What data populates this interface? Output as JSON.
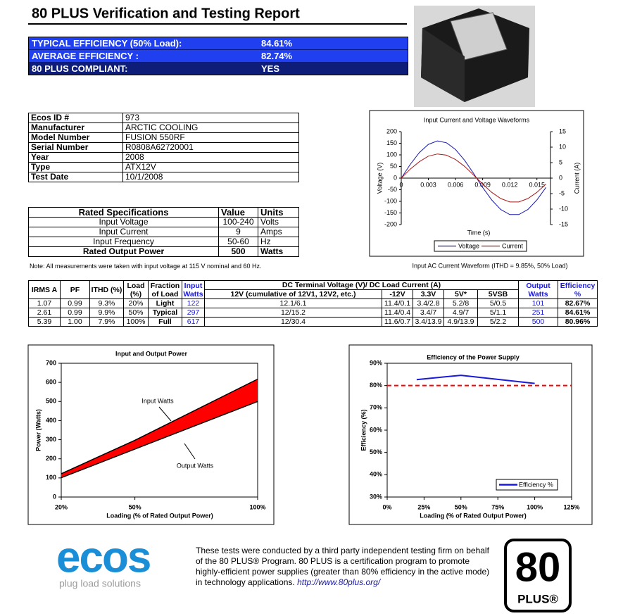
{
  "header": {
    "title": "80 PLUS Verification and Testing Report"
  },
  "summary": [
    {
      "label": "TYPICAL EFFICIENCY (50% Load):",
      "value": "84.61%"
    },
    {
      "label": "AVERAGE EFFICIENCY :",
      "value": "82.74%"
    },
    {
      "label": "80 PLUS COMPLIANT:",
      "value": "YES"
    }
  ],
  "info": [
    [
      "Ecos ID #",
      "973"
    ],
    [
      "Manufacturer",
      "ARCTIC COOLING"
    ],
    [
      "Model Number",
      "FUSION 550RF"
    ],
    [
      "Serial Number",
      "R0808A62720001"
    ],
    [
      "Year",
      "2008"
    ],
    [
      "Type",
      "ATX12V"
    ],
    [
      "Test Date",
      "10/1/2008"
    ]
  ],
  "rated": {
    "header": [
      "Rated Specifications",
      "Value",
      "Units"
    ],
    "rows": [
      [
        "Input Voltage",
        "100-240",
        "Volts"
      ],
      [
        "Input Current",
        "9",
        "Amps"
      ],
      [
        "Input Frequency",
        "50-60",
        "Hz"
      ],
      [
        "Rated Output Power",
        "500",
        "Watts"
      ]
    ]
  },
  "note": "Note: All measurements were taken with input voltage at 115 V nominal and 60 Hz.",
  "test_table": {
    "header_top": [
      "IRMS A",
      "PF",
      "ITHD (%)",
      "Load (%)",
      "Fraction of Load",
      "Input Watts",
      "DC Terminal Voltage (V)/ DC Load Current (A)",
      "Output Watts",
      "Efficiency %"
    ],
    "header_sub": [
      "12V (cumulative of 12V1, 12V2, etc.)",
      "-12V",
      "3.3V",
      "5V*",
      "5VSB"
    ],
    "rows": [
      [
        "1.07",
        "0.99",
        "9.3%",
        "20%",
        "Light",
        "122",
        "12.1/6.1",
        "11.4/0.1",
        "3.4/2.8",
        "5.2/8",
        "5/0.5",
        "101",
        "82.67%"
      ],
      [
        "2.61",
        "0.99",
        "9.9%",
        "50%",
        "Typical",
        "297",
        "12/15.2",
        "11.4/0.4",
        "3.4/7",
        "4.9/7",
        "5/1.1",
        "251",
        "84.61%"
      ],
      [
        "5.39",
        "1.00",
        "7.9%",
        "100%",
        "Full",
        "617",
        "12/30.4",
        "11.6/0.7",
        "3.4/13.9",
        "4.9/13.9",
        "5/2.2",
        "500",
        "80.96%"
      ]
    ]
  },
  "chart_data": [
    {
      "type": "line",
      "title": "Input Current and Voltage Waveforms",
      "x_label": "Time (s)",
      "y_label": "Voltage (V)",
      "y2_label": "Current (A)",
      "caption": "Input AC Current Waveform (ITHD = 9.85%, 50% Load)",
      "x": [
        0,
        0.001,
        0.002,
        0.003,
        0.004,
        0.005,
        0.006,
        0.007,
        0.008,
        0.009,
        0.01,
        0.011,
        0.012,
        0.013,
        0.014,
        0.015,
        0.016
      ],
      "series": [
        {
          "name": "Voltage",
          "color": "#1a1aa8",
          "values": [
            0,
            59,
            110,
            145,
            160,
            152,
            123,
            77,
            20,
            -40,
            -94,
            -135,
            -157,
            -157,
            -135,
            -94,
            -40
          ]
        },
        {
          "name": "Current",
          "color": "#a81a1a",
          "axis": "y2",
          "values": [
            0,
            2.9,
            5.3,
            7.1,
            7.8,
            7.4,
            6.0,
            3.8,
            1.0,
            -1.9,
            -4.6,
            -6.6,
            -7.7,
            -7.7,
            -6.6,
            -4.6,
            -1.9
          ]
        }
      ],
      "xlim": [
        0,
        0.0165
      ],
      "xticks": [
        0,
        0.003,
        0.006,
        0.009,
        0.012,
        0.015
      ],
      "ylim": [
        -200,
        200
      ],
      "yticks": [
        -200,
        -150,
        -100,
        -50,
        0,
        50,
        100,
        150,
        200
      ],
      "y2lim": [
        -15,
        15
      ],
      "y2ticks": [
        -15,
        -10,
        -5,
        0,
        5,
        10,
        15
      ],
      "legend": "bottom"
    },
    {
      "type": "area",
      "title": "Input and Output Power",
      "x_label": "Loading (% of Rated Output Power)",
      "y_label": "Power (Watts)",
      "x": [
        20,
        50,
        100
      ],
      "series": [
        {
          "name": "Input Watts",
          "color": "#000000",
          "values": [
            122,
            297,
            617
          ]
        },
        {
          "name": "Output Watts",
          "color": "#000000",
          "values": [
            101,
            251,
            500
          ]
        }
      ],
      "fill_color": "#ff0000",
      "annotations": [
        "Input Watts",
        "Output Watts"
      ],
      "xlim": [
        20,
        100
      ],
      "xticks": [
        {
          "value": 20,
          "label": "20%"
        },
        {
          "value": 50,
          "label": "50%"
        },
        {
          "value": 100,
          "label": "100%"
        }
      ],
      "ylim": [
        0,
        700
      ],
      "yticks": [
        0,
        100,
        200,
        300,
        400,
        500,
        600,
        700
      ]
    },
    {
      "type": "line",
      "title": "Efficiency of the Power Supply",
      "x_label": "Loading (% of Rated Output Power)",
      "y_label": "Efficiency (%)",
      "x": [
        20,
        50,
        100
      ],
      "series": [
        {
          "name": "Efficiency %",
          "color": "#1a1ad8",
          "values": [
            82.67,
            84.61,
            80.96
          ]
        }
      ],
      "reference_line": {
        "value": 80,
        "color": "#ff0000"
      },
      "xlim": [
        0,
        125
      ],
      "xticks": [
        {
          "value": 0,
          "label": "0%"
        },
        {
          "value": 25,
          "label": "25%"
        },
        {
          "value": 50,
          "label": "50%"
        },
        {
          "value": 75,
          "label": "75%"
        },
        {
          "value": 100,
          "label": "100%"
        },
        {
          "value": 125,
          "label": "125%"
        }
      ],
      "ylim": [
        30,
        90
      ],
      "yticks": [
        {
          "value": 30,
          "label": "30%"
        },
        {
          "value": 40,
          "label": "40%"
        },
        {
          "value": 50,
          "label": "50%"
        },
        {
          "value": 60,
          "label": "60%"
        },
        {
          "value": 70,
          "label": "70%"
        },
        {
          "value": 80,
          "label": "80%"
        },
        {
          "value": 90,
          "label": "90%"
        }
      ],
      "legend": "bottom-right"
    }
  ],
  "footer": {
    "text": "These tests were conducted by a third party independent testing firm on behalf of the 80 PLUS® Program. 80 PLUS is a certification program to promote highly-efficient power supplies (greater than 80% efficiency in the active mode) in technology applications.",
    "link": "http://www.80plus.org/",
    "ecos_logo": "ecos",
    "ecos_tagline": "plug load solutions",
    "badge_number": "80",
    "badge_text": "PLUS®"
  }
}
